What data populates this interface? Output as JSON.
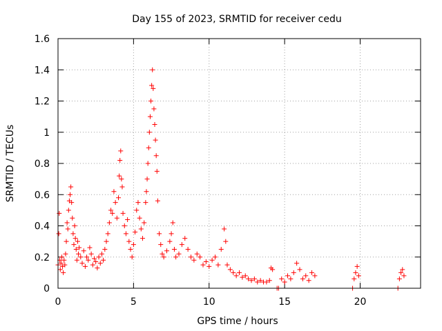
{
  "chart_data": {
    "type": "scatter",
    "title": "Day 155 of 2023, SRMTID for receiver cedu",
    "xlabel": "GPS time / hours",
    "ylabel": "SRMTID / TECUs",
    "xlim": [
      0,
      24
    ],
    "ylim": [
      0,
      1.6
    ],
    "xticks": [
      0,
      5,
      10,
      15,
      20
    ],
    "xtick_labels": [
      "0",
      "5",
      "10",
      "15",
      "20"
    ],
    "yticks": [
      0,
      0.2,
      0.4,
      0.6,
      0.8,
      1.0,
      1.2,
      1.4,
      1.6
    ],
    "ytick_labels": [
      "0",
      "0.2",
      "0.4",
      "0.6",
      "0.8",
      "1",
      "1.2",
      "1.4",
      "1.6"
    ],
    "grid": true,
    "marker": "plus",
    "color": "#ff0000",
    "series": [
      {
        "name": "SRMTID",
        "points": [
          [
            0.0,
            0.15
          ],
          [
            0.05,
            0.35
          ],
          [
            0.08,
            0.48
          ],
          [
            0.12,
            0.18
          ],
          [
            0.15,
            0.12
          ],
          [
            0.2,
            0.16
          ],
          [
            0.25,
            0.2
          ],
          [
            0.3,
            0.14
          ],
          [
            0.35,
            0.1
          ],
          [
            0.4,
            0.18
          ],
          [
            0.45,
            0.15
          ],
          [
            0.5,
            0.22
          ],
          [
            0.55,
            0.3
          ],
          [
            0.6,
            0.42
          ],
          [
            0.65,
            0.38
          ],
          [
            0.7,
            0.5
          ],
          [
            0.75,
            0.56
          ],
          [
            0.8,
            0.6
          ],
          [
            0.85,
            0.65
          ],
          [
            0.9,
            0.55
          ],
          [
            0.95,
            0.45
          ],
          [
            1.0,
            0.35
          ],
          [
            1.05,
            0.28
          ],
          [
            1.1,
            0.4
          ],
          [
            1.15,
            0.32
          ],
          [
            1.2,
            0.25
          ],
          [
            1.25,
            0.18
          ],
          [
            1.3,
            0.3
          ],
          [
            1.35,
            0.22
          ],
          [
            1.4,
            0.26
          ],
          [
            1.5,
            0.2
          ],
          [
            1.6,
            0.16
          ],
          [
            1.7,
            0.24
          ],
          [
            1.8,
            0.14
          ],
          [
            1.9,
            0.2
          ],
          [
            2.0,
            0.18
          ],
          [
            2.1,
            0.26
          ],
          [
            2.2,
            0.22
          ],
          [
            2.3,
            0.15
          ],
          [
            2.4,
            0.19
          ],
          [
            2.5,
            0.17
          ],
          [
            2.6,
            0.13
          ],
          [
            2.7,
            0.2
          ],
          [
            2.8,
            0.16
          ],
          [
            2.9,
            0.22
          ],
          [
            3.0,
            0.18
          ],
          [
            3.1,
            0.25
          ],
          [
            3.2,
            0.3
          ],
          [
            3.3,
            0.35
          ],
          [
            3.4,
            0.42
          ],
          [
            3.5,
            0.5
          ],
          [
            3.6,
            0.48
          ],
          [
            3.7,
            0.62
          ],
          [
            3.8,
            0.55
          ],
          [
            3.9,
            0.45
          ],
          [
            4.0,
            0.58
          ],
          [
            4.05,
            0.72
          ],
          [
            4.1,
            0.82
          ],
          [
            4.15,
            0.88
          ],
          [
            4.2,
            0.7
          ],
          [
            4.25,
            0.65
          ],
          [
            4.3,
            0.48
          ],
          [
            4.4,
            0.4
          ],
          [
            4.5,
            0.35
          ],
          [
            4.6,
            0.44
          ],
          [
            4.7,
            0.3
          ],
          [
            4.8,
            0.25
          ],
          [
            4.9,
            0.2
          ],
          [
            5.0,
            0.28
          ],
          [
            5.1,
            0.36
          ],
          [
            5.2,
            0.5
          ],
          [
            5.3,
            0.55
          ],
          [
            5.4,
            0.45
          ],
          [
            5.5,
            0.38
          ],
          [
            5.6,
            0.32
          ],
          [
            5.7,
            0.42
          ],
          [
            5.8,
            0.55
          ],
          [
            5.85,
            0.62
          ],
          [
            5.9,
            0.7
          ],
          [
            5.95,
            0.8
          ],
          [
            6.0,
            0.9
          ],
          [
            6.05,
            1.0
          ],
          [
            6.1,
            1.1
          ],
          [
            6.15,
            1.2
          ],
          [
            6.2,
            1.3
          ],
          [
            6.25,
            1.4
          ],
          [
            6.3,
            1.28
          ],
          [
            6.35,
            1.15
          ],
          [
            6.4,
            1.05
          ],
          [
            6.45,
            0.95
          ],
          [
            6.5,
            0.85
          ],
          [
            6.55,
            0.75
          ],
          [
            6.6,
            0.56
          ],
          [
            6.7,
            0.35
          ],
          [
            6.8,
            0.28
          ],
          [
            6.9,
            0.22
          ],
          [
            7.0,
            0.2
          ],
          [
            7.2,
            0.24
          ],
          [
            7.4,
            0.3
          ],
          [
            7.5,
            0.35
          ],
          [
            7.6,
            0.42
          ],
          [
            7.7,
            0.25
          ],
          [
            7.8,
            0.2
          ],
          [
            8.0,
            0.22
          ],
          [
            8.2,
            0.28
          ],
          [
            8.4,
            0.32
          ],
          [
            8.6,
            0.25
          ],
          [
            8.8,
            0.2
          ],
          [
            9.0,
            0.18
          ],
          [
            9.2,
            0.22
          ],
          [
            9.4,
            0.2
          ],
          [
            9.6,
            0.15
          ],
          [
            9.8,
            0.17
          ],
          [
            10.0,
            0.14
          ],
          [
            10.2,
            0.18
          ],
          [
            10.4,
            0.2
          ],
          [
            10.6,
            0.15
          ],
          [
            10.8,
            0.25
          ],
          [
            11.0,
            0.38
          ],
          [
            11.1,
            0.3
          ],
          [
            11.2,
            0.15
          ],
          [
            11.4,
            0.12
          ],
          [
            11.6,
            0.1
          ],
          [
            11.8,
            0.08
          ],
          [
            12.0,
            0.1
          ],
          [
            12.2,
            0.07
          ],
          [
            12.4,
            0.08
          ],
          [
            12.6,
            0.06
          ],
          [
            12.8,
            0.05
          ],
          [
            13.0,
            0.06
          ],
          [
            13.2,
            0.04
          ],
          [
            13.4,
            0.05
          ],
          [
            13.6,
            0.04
          ],
          [
            13.8,
            0.04
          ],
          [
            14.0,
            0.05
          ],
          [
            14.1,
            0.13
          ],
          [
            14.2,
            0.12
          ],
          [
            14.5,
            0.0
          ],
          [
            14.6,
            0.0
          ],
          [
            14.8,
            0.06
          ],
          [
            15.0,
            0.04
          ],
          [
            15.2,
            0.08
          ],
          [
            15.4,
            0.06
          ],
          [
            15.6,
            0.1
          ],
          [
            15.8,
            0.16
          ],
          [
            16.0,
            0.12
          ],
          [
            16.2,
            0.06
          ],
          [
            16.4,
            0.08
          ],
          [
            16.6,
            0.05
          ],
          [
            16.8,
            0.1
          ],
          [
            17.0,
            0.08
          ],
          [
            19.5,
            0.0
          ],
          [
            19.6,
            0.06
          ],
          [
            19.7,
            0.1
          ],
          [
            19.8,
            0.14
          ],
          [
            19.9,
            0.08
          ],
          [
            22.5,
            0.0
          ],
          [
            22.6,
            0.06
          ],
          [
            22.7,
            0.1
          ],
          [
            22.8,
            0.12
          ],
          [
            22.9,
            0.08
          ]
        ]
      }
    ]
  }
}
